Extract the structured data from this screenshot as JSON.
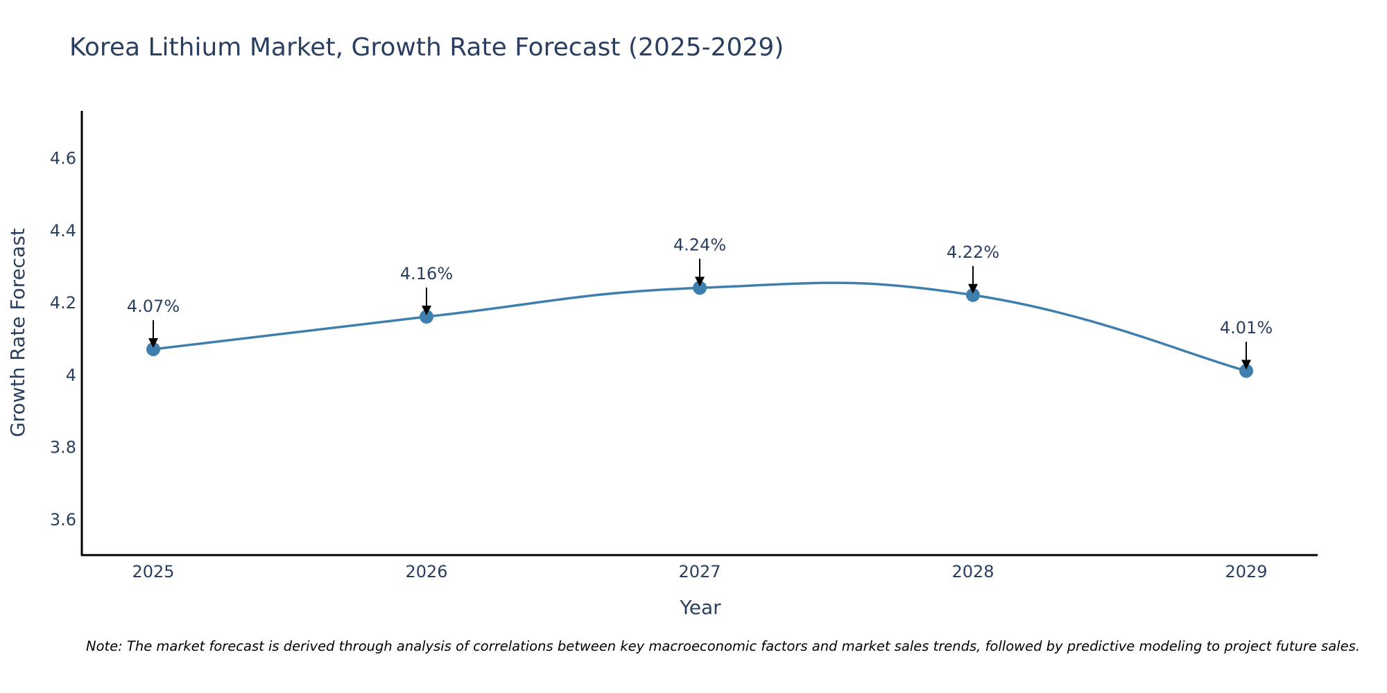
{
  "chart_data": {
    "type": "line",
    "title": "Korea Lithium Market, Growth Rate Forecast (2025-2029)",
    "xlabel": "Year",
    "ylabel": "Growth Rate Forecast",
    "categories": [
      "2025",
      "2026",
      "2027",
      "2028",
      "2029"
    ],
    "series": [
      {
        "name": "Growth Rate Forecast",
        "values": [
          4.07,
          4.16,
          4.24,
          4.22,
          4.01
        ],
        "color": "#3f7fae",
        "line_shape": "spline"
      }
    ],
    "data_labels": [
      "4.07%",
      "4.16%",
      "4.24%",
      "4.22%",
      "4.01%"
    ],
    "ylim": [
      3.5,
      4.73
    ],
    "yticks": [
      3.6,
      3.8,
      4,
      4.2,
      4.4,
      4.6
    ],
    "ytick_labels": [
      "3.6",
      "3.8",
      "4",
      "4.2",
      "4.4",
      "4.6"
    ],
    "grid": false,
    "legend": "none",
    "note": "Note: The market forecast is derived through analysis of correlations between key macroeconomic factors and market sales trends, followed by predictive modeling to project future sales."
  }
}
